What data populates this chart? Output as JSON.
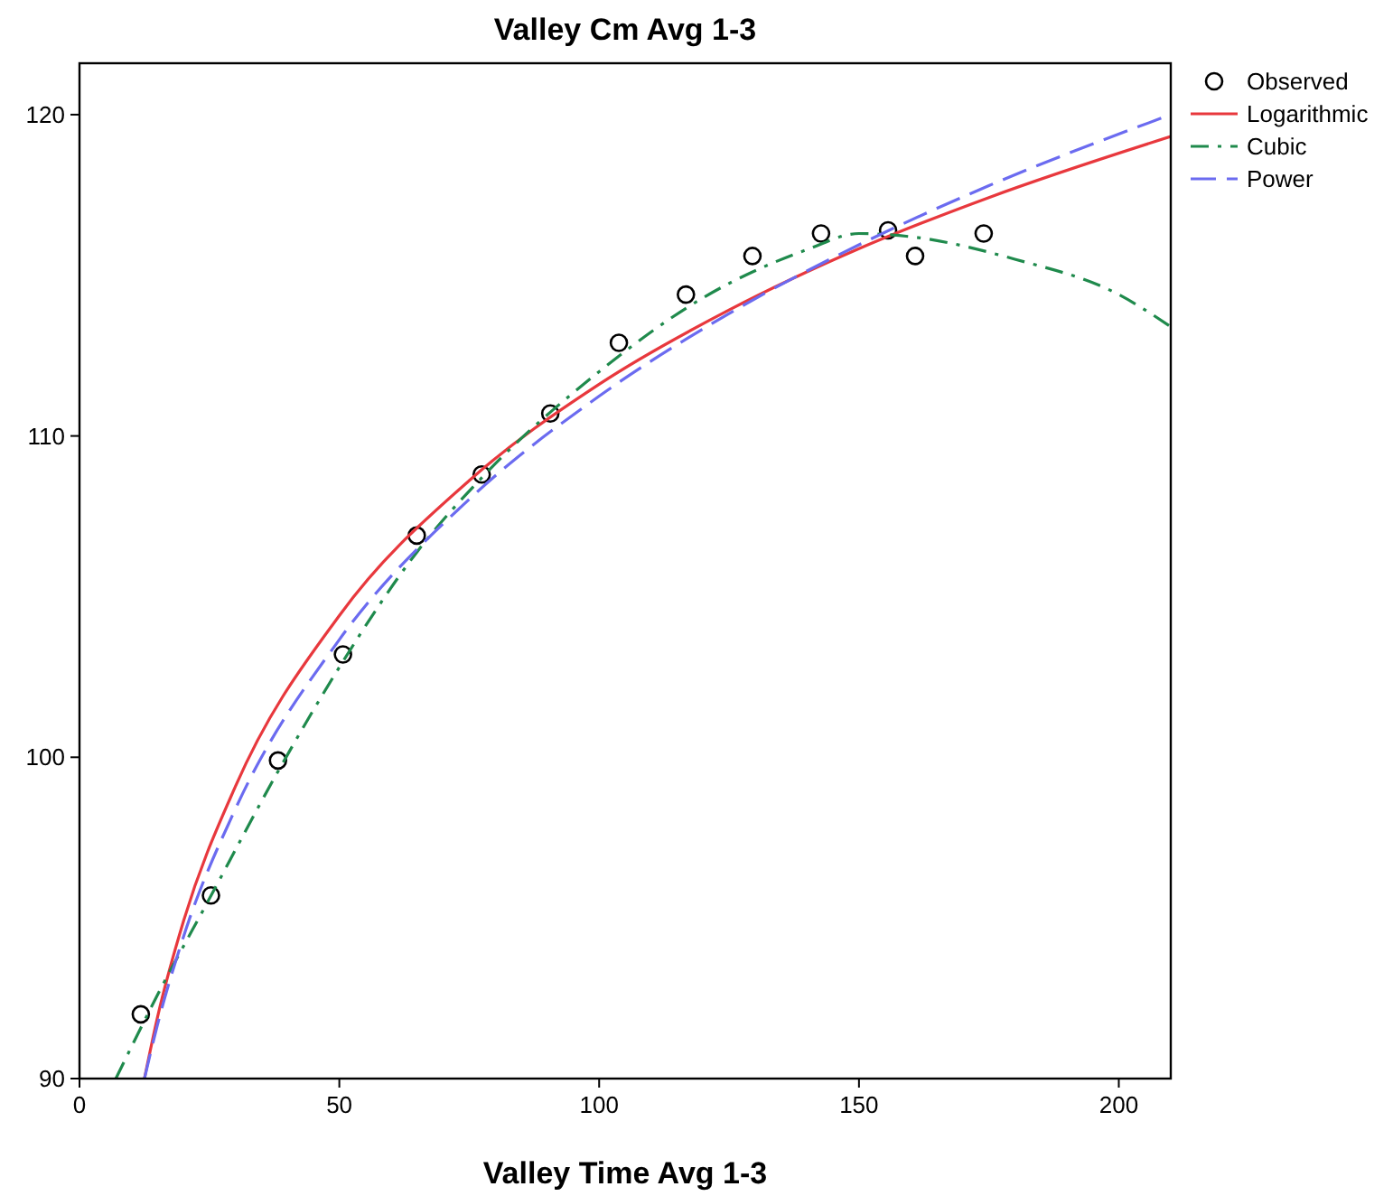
{
  "chart_data": {
    "type": "line",
    "title": "Valley Cm Avg 1-3",
    "xlabel": "Valley Time Avg 1-3",
    "xlim": [
      0,
      210
    ],
    "ylim": [
      90,
      121.6
    ],
    "xticks": [
      0,
      50,
      100,
      150,
      200
    ],
    "yticks": [
      90,
      100,
      110,
      120
    ],
    "grid": false,
    "legend": "top right",
    "series": [
      {
        "name": "Observed",
        "type": "scatter",
        "marker": "circle",
        "color": "#000000",
        "x": [
          11.8,
          25.3,
          38.2,
          50.7,
          64.9,
          77.4,
          90.6,
          103.8,
          116.7,
          129.5,
          142.7,
          155.6,
          160.8,
          174
        ],
        "values": [
          92.0,
          95.7,
          99.9,
          103.2,
          106.9,
          108.8,
          110.7,
          112.9,
          114.4,
          115.6,
          116.3,
          116.4,
          115.6,
          116.3
        ]
      },
      {
        "name": "Logarithmic",
        "line_style": "solid",
        "color": "#e8383d",
        "x": [
          12.5,
          15,
          20,
          30,
          50,
          75,
          100,
          125,
          150,
          175,
          210
        ],
        "values": [
          90.0,
          91.9,
          94.89,
          99.09,
          104.41,
          108.61,
          111.61,
          113.92,
          115.83,
          117.42,
          119.32
        ]
      },
      {
        "name": "Cubic",
        "line_style": "dashdot",
        "color": "#1f8a4c",
        "x": [
          7,
          15,
          25,
          38,
          50,
          65,
          78,
          100,
          120,
          140,
          150,
          160,
          180,
          200,
          210
        ],
        "values": [
          90.0,
          92.6,
          95.6,
          99.5,
          102.8,
          106.4,
          108.8,
          112.0,
          114.3,
          115.8,
          116.3,
          116.2,
          115.5,
          114.4,
          113.4
        ]
      },
      {
        "name": "Power",
        "line_style": "dashed",
        "color": "#6b6bf0",
        "x": [
          12.5,
          15,
          20,
          30,
          50,
          75,
          100,
          125,
          150,
          175,
          210
        ],
        "values": [
          90.0,
          91.67,
          94.41,
          98.39,
          103.66,
          108.03,
          111.24,
          113.81,
          115.95,
          117.79,
          120.0
        ]
      }
    ]
  }
}
